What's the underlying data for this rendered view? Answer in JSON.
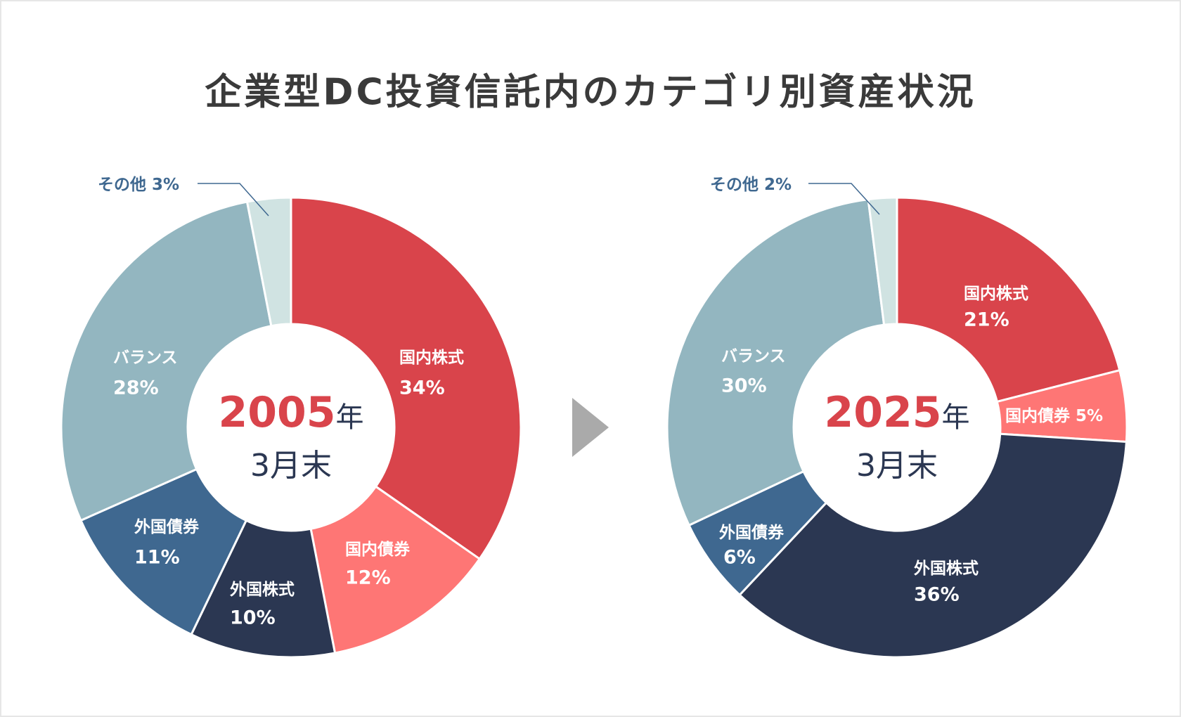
{
  "title": "企業型DC投資信託内のカテゴリ別資産状況",
  "colors": {
    "国内株式": "#d9444b",
    "国内債券": "#fe7675",
    "外国株式": "#2b3752",
    "外国債券": "#3f6890",
    "バランス": "#93b6c0",
    "その他": "#d0e3e2",
    "arrow": "#aaaaaa"
  },
  "chart_data": [
    {
      "type": "pie",
      "donut": true,
      "center_label": {
        "year": "2005",
        "year_suffix": "年",
        "month": "3月末"
      },
      "categories": [
        "国内株式",
        "国内債券",
        "外国株式",
        "外国債券",
        "バランス",
        "その他"
      ],
      "values": [
        34,
        12,
        10,
        11,
        28,
        3
      ],
      "value_labels": [
        "34%",
        "12%",
        "10%",
        "11%",
        "28%",
        "3%"
      ],
      "other_label": "その他 3%"
    },
    {
      "type": "pie",
      "donut": true,
      "center_label": {
        "year": "2025",
        "year_suffix": "年",
        "month": "3月末"
      },
      "categories": [
        "国内株式",
        "国内債券",
        "外国株式",
        "外国債券",
        "バランス",
        "その他"
      ],
      "values": [
        21,
        5,
        36,
        6,
        30,
        2
      ],
      "value_labels": [
        "21%",
        "5%",
        "36%",
        "6%",
        "30%",
        "2%"
      ],
      "other_label": "その他 2%",
      "combined_label_1": "国内債券 5%"
    }
  ]
}
